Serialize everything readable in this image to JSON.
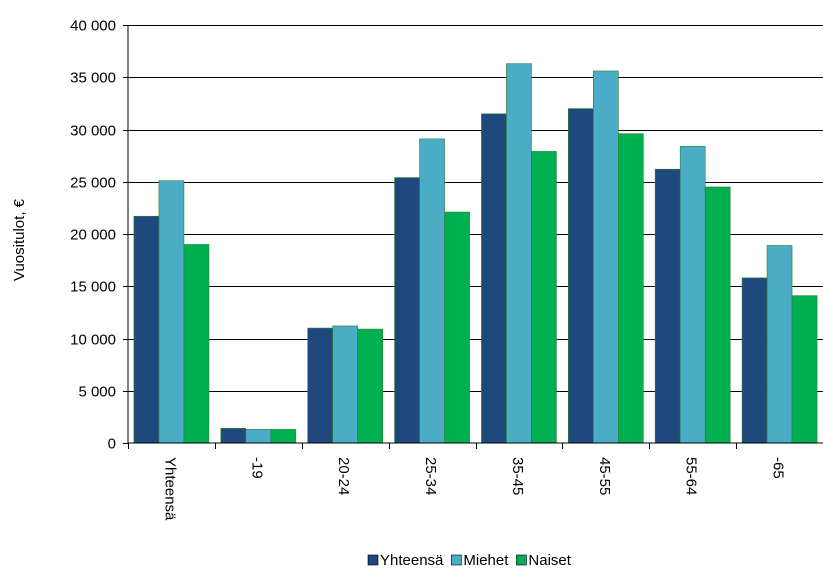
{
  "chart_data": {
    "type": "bar",
    "ylabel": "Vuositulot, €",
    "xlabel": "",
    "ylim": [
      0,
      40000
    ],
    "yticks": [
      0,
      5000,
      10000,
      15000,
      20000,
      25000,
      30000,
      35000,
      40000
    ],
    "ytick_labels": [
      "0",
      "5 000",
      "10 000",
      "15 000",
      "20 000",
      "25 000",
      "30 000",
      "35 000",
      "40 000"
    ],
    "grid": "horizontal",
    "legend_position": "bottom",
    "categories": [
      "Yhteensä",
      "-19",
      "20-24",
      "25-34",
      "35-45",
      "45-55",
      "55-64",
      "-65"
    ],
    "series": [
      {
        "name": "Yhteensä",
        "color": "#1f497d",
        "values": [
          21700,
          1400,
          11000,
          25400,
          31500,
          32000,
          26200,
          15800
        ]
      },
      {
        "name": "Miehet",
        "color": "#4bacc6",
        "values": [
          25100,
          1300,
          11200,
          29100,
          36300,
          35600,
          28400,
          18900
        ]
      },
      {
        "name": "Naiset",
        "color": "#00b050",
        "values": [
          19000,
          1300,
          10900,
          22100,
          27900,
          29600,
          24500,
          14100
        ]
      }
    ]
  }
}
